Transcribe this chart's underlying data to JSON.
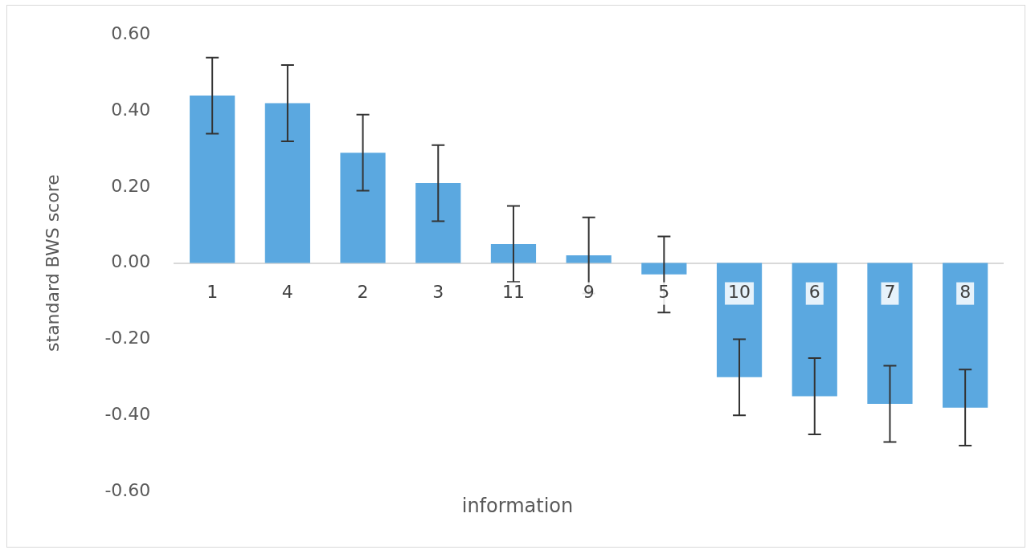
{
  "chart_data": {
    "type": "bar",
    "xlabel": "information",
    "ylabel": "standard BWS score",
    "categories": [
      "1",
      "4",
      "2",
      "3",
      "11",
      "9",
      "5",
      "10",
      "6",
      "7",
      "8"
    ],
    "values": [
      0.44,
      0.42,
      0.29,
      0.21,
      0.05,
      0.02,
      -0.03,
      -0.3,
      -0.35,
      -0.37,
      -0.38
    ],
    "errors": [
      0.1,
      0.1,
      0.1,
      0.1,
      0.1,
      0.1,
      0.1,
      0.1,
      0.1,
      0.1,
      0.1
    ],
    "color": "#5ba8e0",
    "ylim": [
      -0.6,
      0.6
    ],
    "yticks": [
      {
        "value": -0.6,
        "label": "-0.60"
      },
      {
        "value": -0.4,
        "label": "-0.40"
      },
      {
        "value": -0.2,
        "label": "-0.20"
      },
      {
        "value": 0,
        "label": "0.00"
      },
      {
        "value": 0.2,
        "label": "0.20"
      },
      {
        "value": 0.4,
        "label": "0.40"
      },
      {
        "value": 0.6,
        "label": "0.60"
      }
    ],
    "grid": false,
    "legend": false
  }
}
